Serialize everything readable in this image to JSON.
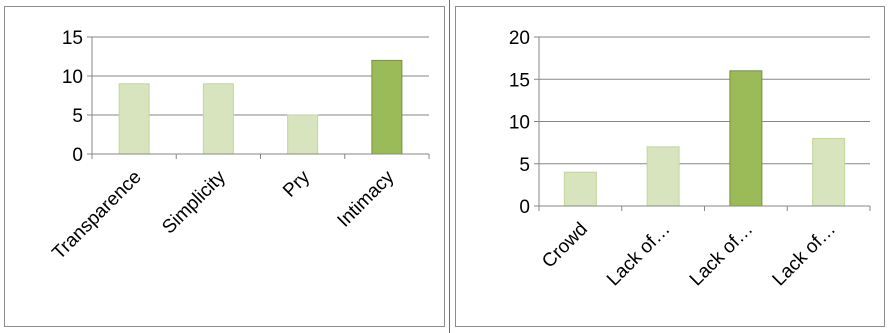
{
  "chart_data": [
    {
      "type": "bar",
      "categories": [
        "Transparence",
        "Simplicity",
        "Pry",
        "Intimacy"
      ],
      "values": [
        9,
        9,
        5,
        12
      ],
      "highlight": [
        false,
        false,
        false,
        true
      ],
      "ylim": [
        0,
        15
      ],
      "yticks": [
        0,
        5,
        10,
        15
      ],
      "grid": true,
      "legend": "none"
    },
    {
      "type": "bar",
      "categories": [
        "Crowd",
        "Lack of…",
        "Lack of…",
        "Lack of…"
      ],
      "values": [
        4,
        7,
        16,
        8
      ],
      "highlight": [
        false,
        false,
        true,
        false
      ],
      "ylim": [
        0,
        20
      ],
      "yticks": [
        0,
        5,
        10,
        15,
        20
      ],
      "grid": true,
      "legend": "none"
    }
  ],
  "colors": {
    "bar": "#d7e4bd",
    "bar_edge": "#c3d69b",
    "highlight": "#9bbb59",
    "highlight_edge": "#76923c",
    "grid": "#878787",
    "axis": "#878787"
  }
}
